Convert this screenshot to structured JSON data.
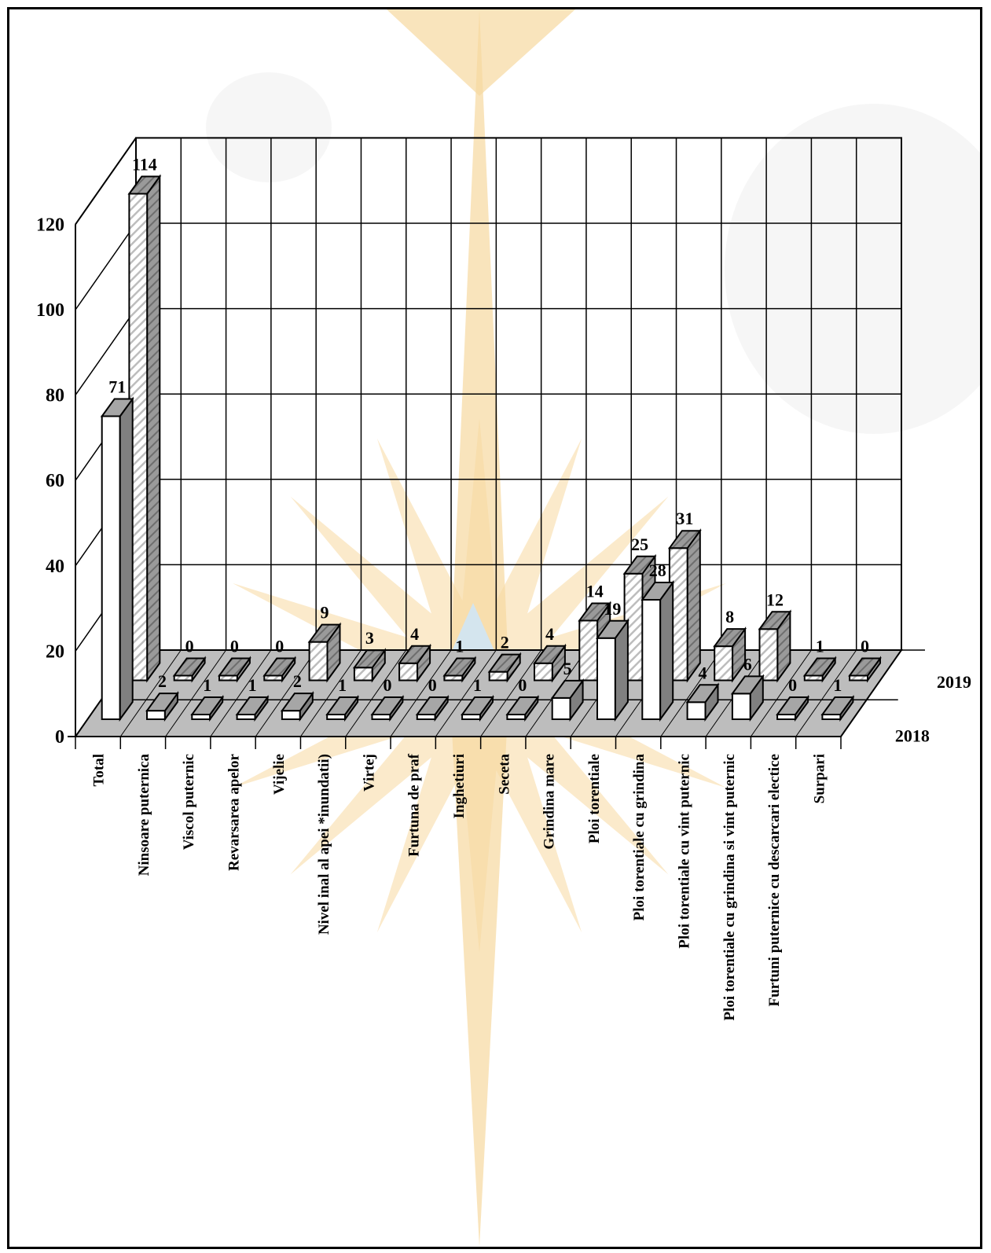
{
  "chart_data": {
    "type": "bar",
    "title": "",
    "xlabel": "",
    "ylabel": "",
    "ylim": [
      0,
      120
    ],
    "yticks": [
      0,
      20,
      40,
      60,
      80,
      100,
      120
    ],
    "grid": true,
    "legend_position": "right",
    "categories": [
      "Total",
      "Ninsoare puternica",
      "Viscol puternic",
      "Revarsarea apelor",
      "Vijelie",
      "Nivel inal al apei *inundatii)",
      "Virtej",
      "Furtuna de praf",
      "Inghetiuri",
      "Seceta",
      "Grindina mare",
      "Ploi torentiale",
      "Ploi torentiale cu grindina",
      "Ploi torentiale cu vint puternic",
      "Ploi torentiale cu grindina si vint puternic",
      "Furtuni puternice cu descarcari electice",
      "Surpari"
    ],
    "series": [
      {
        "name": "2018",
        "values": [
          71,
          2,
          1,
          1,
          2,
          1,
          0,
          0,
          1,
          0,
          5,
          19,
          28,
          4,
          6,
          0,
          1
        ]
      },
      {
        "name": "2019",
        "values": [
          114,
          0,
          0,
          0,
          9,
          3,
          4,
          1,
          2,
          4,
          14,
          25,
          31,
          8,
          12,
          1,
          0
        ]
      }
    ],
    "colors": {
      "front_bar": "#ffffff",
      "back_bar_hatch": "#c8c8c8",
      "bar_side": "#808080",
      "bar_top": "#a6a6a6",
      "floor": "#bdbdbd",
      "watermark_gold": "#f7d9a0",
      "watermark_blue": "#cfe6f5"
    }
  }
}
